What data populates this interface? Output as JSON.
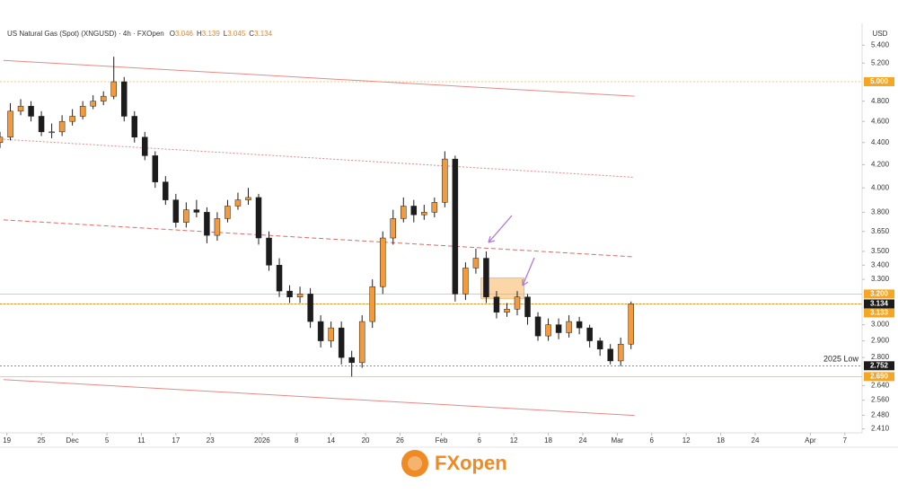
{
  "header": {
    "title": "US Natural Gas (Spot) (XNGUSD) · 4h · FXOpen",
    "ohlc": [
      {
        "label": "O",
        "value": 3.046
      },
      {
        "label": "H",
        "value": 3.139
      },
      {
        "label": "L",
        "value": 3.045
      },
      {
        "label": "C",
        "value": 3.134
      }
    ]
  },
  "logo": "FXopen",
  "chart_data": {
    "type": "candlestick",
    "y_unit": "USD",
    "log": true,
    "ylim": [
      2.39,
      5.6
    ],
    "xlim": [
      0,
      250
    ],
    "yticks": [
      {
        "value": 5.4,
        "label": "5.400"
      },
      {
        "value": 5.2,
        "label": "5.200"
      },
      {
        "value": 4.8,
        "label": "4.800"
      },
      {
        "value": 4.6,
        "label": "4.600"
      },
      {
        "value": 4.4,
        "label": "4.400"
      },
      {
        "value": 4.2,
        "label": "4.200"
      },
      {
        "value": 4.0,
        "label": "4.000"
      },
      {
        "value": 3.8,
        "label": "3.800"
      },
      {
        "value": 3.65,
        "label": "3.650"
      },
      {
        "value": 3.5,
        "label": "3.500"
      },
      {
        "value": 3.4,
        "label": "3.400"
      },
      {
        "value": 3.3,
        "label": "3.300"
      },
      {
        "value": 3.0,
        "label": "3.000"
      },
      {
        "value": 2.9,
        "label": "2.900"
      },
      {
        "value": 2.8,
        "label": "2.800"
      },
      {
        "value": 2.64,
        "label": "2.640"
      },
      {
        "value": 2.56,
        "label": "2.560"
      },
      {
        "value": 2.48,
        "label": "2.480"
      },
      {
        "value": 2.41,
        "label": "2.410"
      }
    ],
    "xticks": [
      {
        "value": 2,
        "label": "19"
      },
      {
        "value": 12,
        "label": "25"
      },
      {
        "value": 21,
        "label": "Dec"
      },
      {
        "value": 31,
        "label": "5"
      },
      {
        "value": 41,
        "label": "11"
      },
      {
        "value": 51,
        "label": "17"
      },
      {
        "value": 61,
        "label": "23"
      },
      {
        "value": 76,
        "label": "2026"
      },
      {
        "value": 86,
        "label": "8"
      },
      {
        "value": 96,
        "label": "14"
      },
      {
        "value": 106,
        "label": "20"
      },
      {
        "value": 116,
        "label": "26"
      },
      {
        "value": 128,
        "label": "Feb"
      },
      {
        "value": 139,
        "label": "6"
      },
      {
        "value": 149,
        "label": "12"
      },
      {
        "value": 159,
        "label": "18"
      },
      {
        "value": 169,
        "label": "24"
      },
      {
        "value": 179,
        "label": "Mar"
      },
      {
        "value": 189,
        "label": "6"
      },
      {
        "value": 199,
        "label": "12"
      },
      {
        "value": 209,
        "label": "18"
      },
      {
        "value": 219,
        "label": "24"
      },
      {
        "value": 235,
        "label": "Apr"
      },
      {
        "value": 245,
        "label": "7"
      }
    ],
    "up_color": "#f29a3c",
    "down_color": "#1c1c1c",
    "x": [
      0,
      3,
      6,
      9,
      12,
      15,
      18,
      21,
      24,
      27,
      30,
      33,
      36,
      39,
      42,
      45,
      48,
      51,
      54,
      57,
      60,
      63,
      66,
      69,
      72,
      75,
      78,
      81,
      84,
      87,
      90,
      93,
      96,
      99,
      102,
      105,
      108,
      111,
      114,
      117,
      120,
      123,
      126,
      129,
      132,
      135,
      138,
      141,
      144,
      147,
      150,
      153,
      156,
      159,
      162,
      165,
      168,
      171,
      174,
      177,
      180,
      183
    ],
    "open": [
      4.4,
      4.45,
      4.7,
      4.75,
      4.65,
      4.5,
      4.5,
      4.6,
      4.65,
      4.75,
      4.8,
      4.85,
      5.0,
      4.65,
      4.45,
      4.28,
      4.05,
      3.9,
      3.72,
      3.82,
      3.8,
      3.62,
      3.75,
      3.85,
      3.9,
      3.92,
      3.6,
      3.4,
      3.22,
      3.18,
      3.2,
      3.02,
      2.9,
      2.98,
      2.8,
      2.77,
      3.02,
      3.25,
      3.6,
      3.75,
      3.85,
      3.78,
      3.8,
      3.88,
      4.25,
      3.2,
      3.38,
      3.45,
      3.18,
      3.08,
      3.1,
      3.18,
      3.05,
      2.93,
      3.0,
      2.95,
      3.02,
      2.98,
      2.9,
      2.85,
      2.78,
      2.88
    ],
    "high": [
      4.5,
      4.78,
      4.82,
      4.8,
      4.7,
      4.58,
      4.66,
      4.72,
      4.8,
      4.86,
      4.9,
      5.27,
      5.05,
      4.7,
      4.5,
      4.32,
      4.1,
      3.95,
      3.88,
      3.9,
      3.84,
      3.8,
      3.9,
      3.96,
      4.0,
      3.95,
      3.65,
      3.45,
      3.26,
      3.25,
      3.24,
      3.06,
      3.02,
      3.02,
      2.84,
      3.06,
      3.3,
      3.65,
      3.82,
      3.92,
      3.9,
      3.86,
      3.92,
      4.32,
      4.28,
      3.42,
      3.52,
      3.5,
      3.22,
      3.14,
      3.22,
      3.2,
      3.08,
      3.04,
      3.04,
      3.06,
      3.05,
      3.0,
      2.92,
      2.88,
      2.92,
      3.15
    ],
    "low": [
      4.35,
      4.42,
      4.66,
      4.6,
      4.46,
      4.44,
      4.46,
      4.56,
      4.62,
      4.72,
      4.76,
      4.82,
      4.6,
      4.4,
      4.24,
      4.0,
      3.86,
      3.68,
      3.68,
      3.76,
      3.56,
      3.58,
      3.72,
      3.82,
      3.86,
      3.55,
      3.36,
      3.18,
      3.14,
      3.14,
      2.98,
      2.86,
      2.86,
      2.76,
      2.69,
      2.74,
      2.98,
      3.2,
      3.55,
      3.72,
      3.72,
      3.74,
      3.76,
      3.84,
      3.15,
      3.16,
      3.34,
      3.14,
      3.04,
      3.05,
      3.06,
      3.0,
      2.9,
      2.9,
      2.91,
      2.92,
      2.94,
      2.86,
      2.81,
      2.76,
      2.75,
      2.85
    ],
    "close": [
      4.45,
      4.7,
      4.75,
      4.65,
      4.5,
      4.5,
      4.6,
      4.65,
      4.75,
      4.8,
      4.85,
      5.0,
      4.65,
      4.45,
      4.28,
      4.05,
      3.9,
      3.72,
      3.82,
      3.8,
      3.62,
      3.75,
      3.85,
      3.9,
      3.92,
      3.6,
      3.4,
      3.22,
      3.18,
      3.2,
      3.02,
      2.9,
      2.98,
      2.8,
      2.77,
      3.02,
      3.25,
      3.6,
      3.75,
      3.85,
      3.78,
      3.8,
      3.88,
      4.25,
      3.2,
      3.38,
      3.45,
      3.18,
      3.08,
      3.1,
      3.18,
      3.05,
      2.93,
      3.0,
      2.95,
      3.02,
      2.98,
      2.9,
      2.85,
      2.78,
      2.88,
      3.134
    ],
    "levels": [
      {
        "value": 5.0,
        "label": "5.000",
        "color": "#f5a623"
      },
      {
        "value": 3.2,
        "label": "3.200",
        "color": "#f5a623"
      },
      {
        "value": 3.134,
        "label": "3.134",
        "color": "#1c1c1c"
      },
      {
        "value": 3.133,
        "label": "3.133",
        "color": "#f5a623"
      },
      {
        "value": 2.752,
        "label": "2.752",
        "color": "#1c1c1c"
      },
      {
        "value": 2.69,
        "label": "2.690",
        "color": "#f5a623"
      }
    ],
    "annotation": {
      "text": "2025 Low",
      "value": 2.752
    },
    "trendlines": [
      {
        "x": [
          1,
          184
        ],
        "y": [
          5.23,
          4.85
        ],
        "color": "#e58a8a",
        "dash": "none"
      },
      {
        "x": [
          1,
          184
        ],
        "y": [
          4.43,
          4.09
        ],
        "color": "#e58a8a",
        "dash": "2 2"
      },
      {
        "x": [
          1,
          184
        ],
        "y": [
          3.74,
          3.46
        ],
        "color": "#e06868",
        "dash": "5 3"
      },
      {
        "x": [
          1,
          184
        ],
        "y": [
          2.673,
          2.479
        ],
        "color": "#e58a8a",
        "dash": "none"
      }
    ],
    "zone": {
      "x": [
        139.5,
        152
      ],
      "y": [
        3.31,
        3.17
      ],
      "color": "#fbd7a8"
    }
  }
}
